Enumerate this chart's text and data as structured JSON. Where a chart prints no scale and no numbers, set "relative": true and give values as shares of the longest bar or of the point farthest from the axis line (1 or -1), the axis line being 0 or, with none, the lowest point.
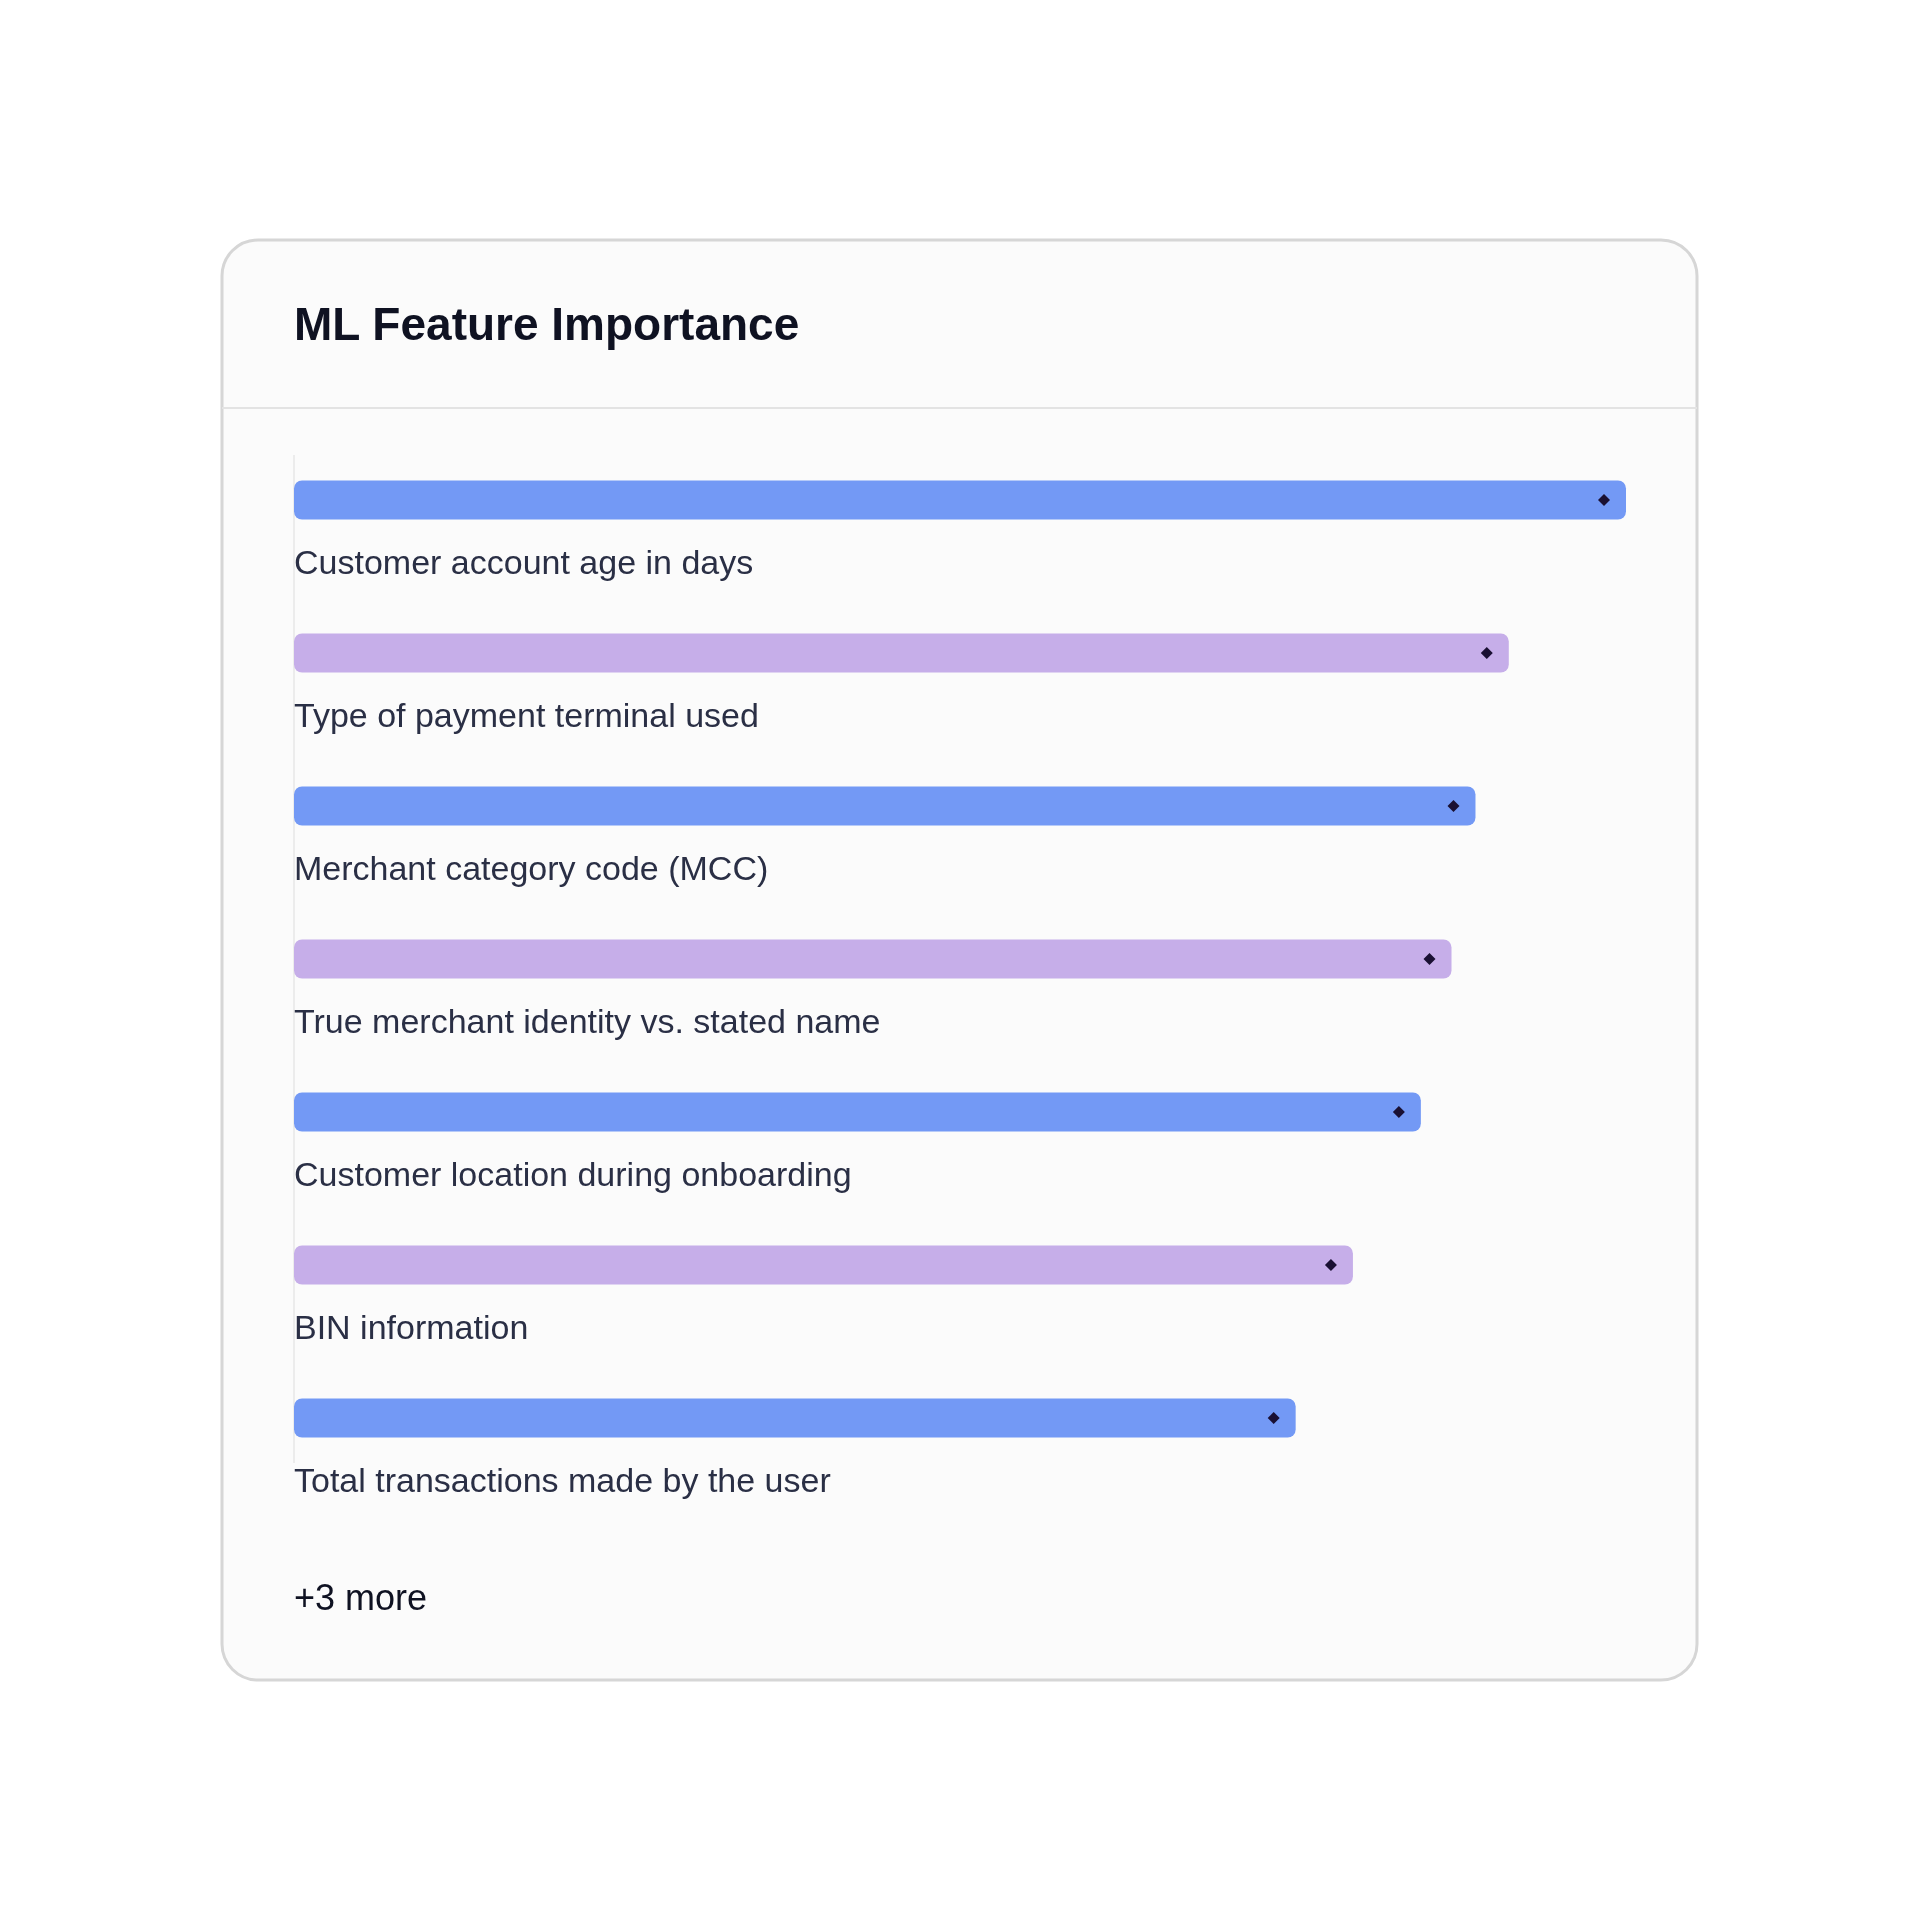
{
  "chart_data": {
    "type": "bar",
    "orientation": "horizontal",
    "relative": true,
    "title": "ML Feature Importance",
    "categories": [
      "Customer account age in days",
      "Type of payment terminal used",
      "Merchant category code (MCC)",
      "True merchant identity vs. stated name",
      "Customer location during onboarding",
      "BIN information",
      "Total transactions made by the user"
    ],
    "values": [
      1,
      0.912,
      0.887,
      0.869,
      0.846,
      0.795,
      0.752
    ],
    "colors": [
      "#7399f5",
      "#c6aee9",
      "#7399f5",
      "#c6aee9",
      "#7399f5",
      "#c6aee9",
      "#7399f5"
    ],
    "annotations": [
      "+3 more"
    ]
  }
}
